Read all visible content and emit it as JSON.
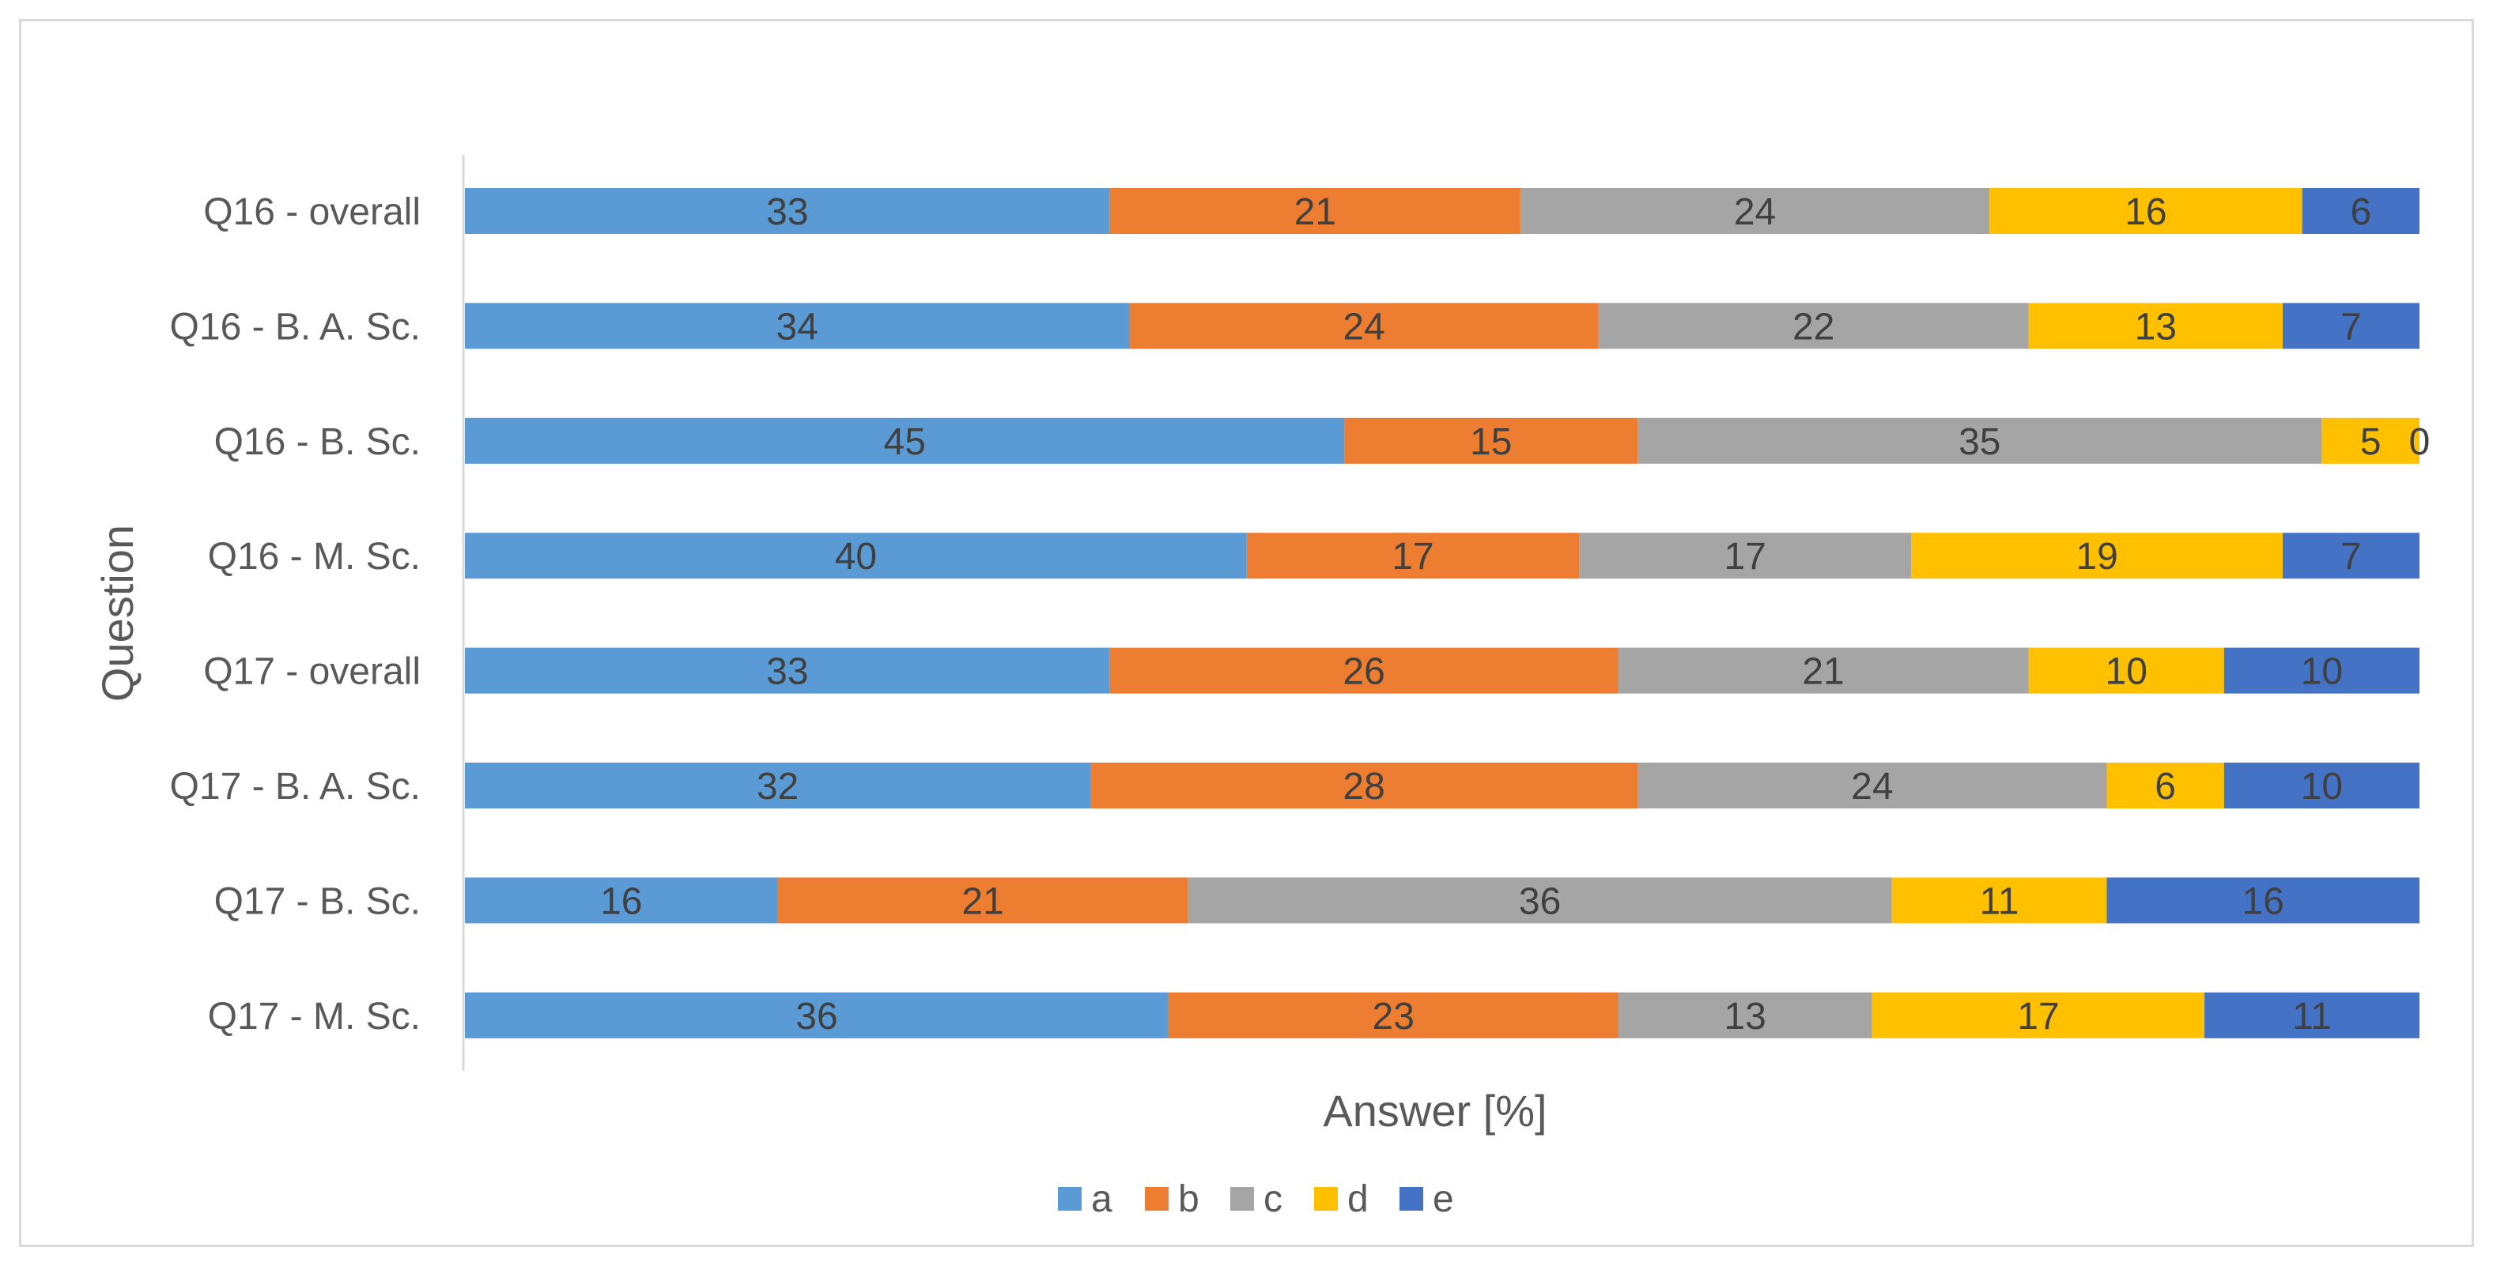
{
  "chart_data": {
    "type": "bar",
    "orientation": "horizontal",
    "stacked": "percent",
    "title": "",
    "xlabel": "Answer [%]",
    "ylabel": "Question",
    "xlim": [
      0,
      100
    ],
    "grid": false,
    "legend_position": "bottom",
    "categories": [
      "Q16 - overall",
      "Q16 - B. A. Sc.",
      "Q16 - B. Sc.",
      "Q16 - M. Sc.",
      "Q17 - overall",
      "Q17 - B. A. Sc.",
      "Q17 - B. Sc.",
      "Q17 - M. Sc."
    ],
    "series": [
      {
        "name": "a",
        "color": "#5b9bd5",
        "values": [
          33,
          34,
          45,
          40,
          33,
          32,
          16,
          36
        ]
      },
      {
        "name": "b",
        "color": "#ed7d31",
        "values": [
          21,
          24,
          15,
          17,
          26,
          28,
          21,
          23
        ]
      },
      {
        "name": "c",
        "color": "#a5a5a5",
        "values": [
          24,
          22,
          35,
          17,
          21,
          24,
          36,
          13
        ]
      },
      {
        "name": "d",
        "color": "#ffc000",
        "values": [
          16,
          13,
          5,
          19,
          10,
          6,
          11,
          17
        ]
      },
      {
        "name": "e",
        "color": "#4472c4",
        "values": [
          6,
          7,
          0,
          7,
          10,
          10,
          16,
          11
        ]
      }
    ]
  }
}
